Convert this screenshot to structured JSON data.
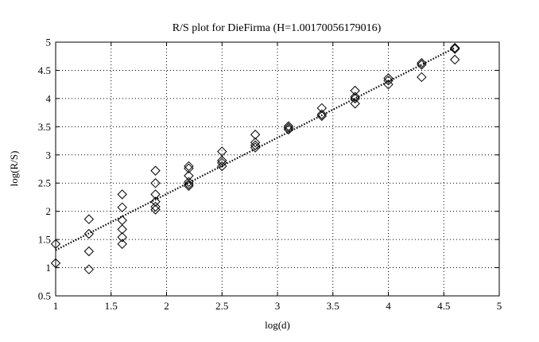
{
  "chart_data": {
    "type": "scatter",
    "title": "R/S plot for DieFirma (H=1.00170056179016)",
    "xlabel": "log(d)",
    "ylabel": "log(R/S)",
    "xlim": [
      1,
      5
    ],
    "ylim": [
      0.5,
      5
    ],
    "xticks": [
      "1",
      "1.5",
      "2",
      "2.5",
      "3",
      "3.5",
      "4",
      "4.5",
      "5"
    ],
    "yticks": [
      "0.5",
      "1",
      "1.5",
      "2",
      "2.5",
      "3",
      "3.5",
      "4",
      "4.5",
      "5"
    ],
    "grid": true,
    "marker": "diamond",
    "series": [
      {
        "points": [
          [
            1.0,
            1.42
          ],
          [
            1.0,
            1.08
          ],
          [
            1.3,
            1.86
          ],
          [
            1.3,
            1.6
          ],
          [
            1.3,
            1.29
          ],
          [
            1.3,
            0.97
          ],
          [
            1.6,
            2.3
          ],
          [
            1.6,
            2.07
          ],
          [
            1.6,
            1.84
          ],
          [
            1.6,
            1.68
          ],
          [
            1.6,
            1.54
          ],
          [
            1.6,
            1.42
          ],
          [
            1.9,
            2.72
          ],
          [
            1.9,
            2.5
          ],
          [
            1.9,
            2.3
          ],
          [
            1.9,
            2.17
          ],
          [
            1.9,
            2.08
          ],
          [
            1.9,
            2.03
          ],
          [
            2.2,
            2.8
          ],
          [
            2.2,
            2.76
          ],
          [
            2.2,
            2.63
          ],
          [
            2.2,
            2.52
          ],
          [
            2.2,
            2.48
          ],
          [
            2.2,
            2.45
          ],
          [
            2.5,
            3.06
          ],
          [
            2.5,
            2.9
          ],
          [
            2.5,
            2.86
          ],
          [
            2.5,
            2.8
          ],
          [
            2.8,
            3.36
          ],
          [
            2.8,
            3.22
          ],
          [
            2.8,
            3.17
          ],
          [
            2.8,
            3.13
          ],
          [
            3.1,
            3.51
          ],
          [
            3.1,
            3.48
          ],
          [
            3.1,
            3.45
          ],
          [
            3.4,
            3.83
          ],
          [
            3.4,
            3.72
          ],
          [
            3.4,
            3.69
          ],
          [
            3.7,
            4.14
          ],
          [
            3.7,
            4.03
          ],
          [
            3.7,
            4.0
          ],
          [
            3.7,
            3.91
          ],
          [
            4.0,
            4.36
          ],
          [
            4.0,
            4.32
          ],
          [
            4.0,
            4.25
          ],
          [
            4.3,
            4.63
          ],
          [
            4.3,
            4.6
          ],
          [
            4.3,
            4.38
          ],
          [
            4.6,
            4.9
          ],
          [
            4.6,
            4.88
          ],
          [
            4.6,
            4.69
          ]
        ]
      },
      {
        "type": "line",
        "style": "dotted",
        "points": [
          [
            1.0,
            1.31
          ],
          [
            4.6,
            4.9
          ]
        ]
      }
    ]
  }
}
